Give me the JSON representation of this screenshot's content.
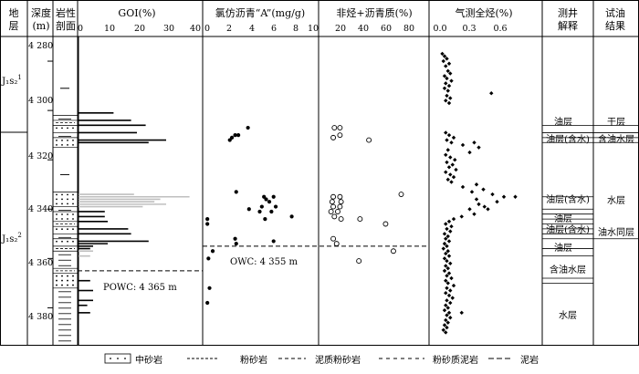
{
  "headers": {
    "stratum": [
      "地",
      "层"
    ],
    "depth": [
      "深度",
      "(m)"
    ],
    "lithology": [
      "岩性",
      "剖面"
    ],
    "goi": "GOI(%)",
    "chloroform": "氯仿沥青“A”(mg/g)",
    "nonhydro": "非烃+沥青质(%)",
    "gas": "气测全烃(%)",
    "logging": [
      "测井",
      "解释"
    ],
    "test": [
      "试油",
      "结果"
    ]
  },
  "strata": {
    "upper": {
      "base": "J₁s₂",
      "sup": "1"
    },
    "lower": {
      "base": "J₁s₂",
      "sup": "2"
    }
  },
  "depth_axis": {
    "ticks": [
      "4 280",
      "4 300",
      "4 320",
      "4 340",
      "4 360",
      "4 380"
    ]
  },
  "axes": {
    "goi_ticks": [
      "0",
      "10",
      "20",
      "30",
      "40"
    ],
    "chloroform_ticks": [
      "0",
      "2",
      "4",
      "6",
      "8",
      "10"
    ],
    "nonhydro_ticks": [
      "20",
      "40",
      "60",
      "80"
    ],
    "gas_ticks": [
      "0.0",
      "0.3",
      "0.6"
    ]
  },
  "contacts": {
    "owc": "OWC: 4 355 m",
    "powc": "POWC: 4 365 m"
  },
  "logging_interp": [
    {
      "label": "油层"
    },
    {
      "label": "油层(含水)"
    },
    {
      "label": "油层(含水)"
    },
    {
      "label": "油层"
    },
    {
      "label": "油层(含水)"
    },
    {
      "label": "油层"
    },
    {
      "label": "含油水层"
    },
    {
      "label": "水层"
    }
  ],
  "test_results": [
    {
      "label": "干层"
    },
    {
      "label": "含油水层"
    },
    {
      "label": "水层"
    },
    {
      "label": "油水同层"
    }
  ],
  "legend": [
    {
      "label": "中砂岩"
    },
    {
      "label": "粉砂岩"
    },
    {
      "label": "泥质粉砂岩"
    },
    {
      "label": "粉砂质泥岩"
    },
    {
      "label": "泥岩"
    }
  ],
  "colors": {
    "primary_bar": "#000000",
    "secondary_bar": "#bfbfbf"
  },
  "chart_data": [
    {
      "type": "bar",
      "title": "GOI(%)",
      "xlim": [
        0,
        40
      ],
      "ylabel": "深度(m)",
      "ylim": [
        4270,
        4395
      ],
      "series": [
        {
          "values": [
            {
              "depth": 4301,
              "value": 12
            },
            {
              "depth": 4304,
              "value": 18
            },
            {
              "depth": 4306,
              "value": 23
            },
            {
              "depth": 4309,
              "value": 20
            },
            {
              "depth": 4312,
              "value": 30
            },
            {
              "depth": 4313,
              "value": 24
            },
            {
              "depth": 4341,
              "value": 9
            },
            {
              "depth": 4343,
              "value": 9
            },
            {
              "depth": 4345,
              "value": 10
            },
            {
              "depth": 4348,
              "value": 17
            },
            {
              "depth": 4350,
              "value": 18
            },
            {
              "depth": 4353,
              "value": 24
            },
            {
              "depth": 4354,
              "value": 10
            },
            {
              "depth": 4355,
              "value": 5
            },
            {
              "depth": 4356,
              "value": 4
            },
            {
              "depth": 4369,
              "value": 4
            },
            {
              "depth": 4373,
              "value": 5
            },
            {
              "depth": 4377,
              "value": 5
            },
            {
              "depth": 4379,
              "value": 3
            },
            {
              "depth": 4382,
              "value": 4
            }
          ]
        },
        {
          "values": [
            {
              "depth": 4334,
              "value": 19
            },
            {
              "depth": 4335,
              "value": 38
            },
            {
              "depth": 4336,
              "value": 28
            },
            {
              "depth": 4337,
              "value": 26
            },
            {
              "depth": 4338,
              "value": 30
            },
            {
              "depth": 4339,
              "value": 22
            },
            {
              "depth": 4357,
              "value": 5
            },
            {
              "depth": 4359,
              "value": 4
            }
          ]
        }
      ]
    },
    {
      "type": "scatter",
      "title": "氯仿沥青“A”(mg/g)",
      "xlim": [
        0,
        10
      ],
      "ylim": [
        4270,
        4395
      ],
      "points": [
        {
          "x": 3.9,
          "y": 4307
        },
        {
          "x": 3.0,
          "y": 4310
        },
        {
          "x": 2.7,
          "y": 4310
        },
        {
          "x": 2.4,
          "y": 4311
        },
        {
          "x": 2.2,
          "y": 4312
        },
        {
          "x": 2.8,
          "y": 4333
        },
        {
          "x": 5.4,
          "y": 4335
        },
        {
          "x": 6.3,
          "y": 4335
        },
        {
          "x": 5.6,
          "y": 4336
        },
        {
          "x": 5.9,
          "y": 4337
        },
        {
          "x": 5.2,
          "y": 4339
        },
        {
          "x": 6.5,
          "y": 4339
        },
        {
          "x": 4.0,
          "y": 4340
        },
        {
          "x": 5.0,
          "y": 4341
        },
        {
          "x": 6.1,
          "y": 4341
        },
        {
          "x": 8.0,
          "y": 4343
        },
        {
          "x": 5.5,
          "y": 4344
        },
        {
          "x": 0.1,
          "y": 4344
        },
        {
          "x": 0.1,
          "y": 4346
        },
        {
          "x": 2.7,
          "y": 4352
        },
        {
          "x": 6.3,
          "y": 4353
        },
        {
          "x": 2.8,
          "y": 4354
        },
        {
          "x": 0.6,
          "y": 4357
        },
        {
          "x": 0.2,
          "y": 4360
        },
        {
          "x": 0.3,
          "y": 4372
        },
        {
          "x": 0.1,
          "y": 4378
        }
      ]
    },
    {
      "type": "scatter",
      "title": "非烃+沥青质(%)",
      "xlim": [
        0,
        100
      ],
      "ylim": [
        4270,
        4395
      ],
      "points": [
        {
          "x": 15,
          "y": 4307
        },
        {
          "x": 20,
          "y": 4307
        },
        {
          "x": 14,
          "y": 4311
        },
        {
          "x": 20,
          "y": 4310
        },
        {
          "x": 46,
          "y": 4312
        },
        {
          "x": 75,
          "y": 4334
        },
        {
          "x": 14,
          "y": 4335
        },
        {
          "x": 20,
          "y": 4335
        },
        {
          "x": 13,
          "y": 4337
        },
        {
          "x": 21,
          "y": 4337
        },
        {
          "x": 14,
          "y": 4339
        },
        {
          "x": 20,
          "y": 4339
        },
        {
          "x": 12,
          "y": 4341
        },
        {
          "x": 18,
          "y": 4341
        },
        {
          "x": 15,
          "y": 4343
        },
        {
          "x": 21,
          "y": 4344
        },
        {
          "x": 38,
          "y": 4344
        },
        {
          "x": 61,
          "y": 4346
        },
        {
          "x": 14,
          "y": 4352
        },
        {
          "x": 17,
          "y": 4354
        },
        {
          "x": 68,
          "y": 4357
        },
        {
          "x": 37,
          "y": 4361
        }
      ]
    },
    {
      "type": "scatter",
      "title": "气测全烃(%)",
      "xlim": [
        0,
        0.8
      ],
      "ylim": [
        4270,
        4395
      ],
      "points": [
        {
          "x": 0.02,
          "y": 4277
        },
        {
          "x": 0.04,
          "y": 4278
        },
        {
          "x": 0.06,
          "y": 4279
        },
        {
          "x": 0.03,
          "y": 4280
        },
        {
          "x": 0.08,
          "y": 4281
        },
        {
          "x": 0.05,
          "y": 4282
        },
        {
          "x": 0.07,
          "y": 4284
        },
        {
          "x": 0.09,
          "y": 4285
        },
        {
          "x": 0.04,
          "y": 4286
        },
        {
          "x": 0.06,
          "y": 4287
        },
        {
          "x": 0.1,
          "y": 4288
        },
        {
          "x": 0.05,
          "y": 4289
        },
        {
          "x": 0.08,
          "y": 4290
        },
        {
          "x": 0.04,
          "y": 4291
        },
        {
          "x": 0.07,
          "y": 4292
        },
        {
          "x": 0.45,
          "y": 4293
        },
        {
          "x": 0.06,
          "y": 4294
        },
        {
          "x": 0.09,
          "y": 4295
        },
        {
          "x": 0.05,
          "y": 4296
        },
        {
          "x": 0.08,
          "y": 4297
        },
        {
          "x": 0.05,
          "y": 4309
        },
        {
          "x": 0.08,
          "y": 4310
        },
        {
          "x": 0.12,
          "y": 4311
        },
        {
          "x": 0.06,
          "y": 4312
        },
        {
          "x": 0.1,
          "y": 4313
        },
        {
          "x": 0.3,
          "y": 4313
        },
        {
          "x": 0.2,
          "y": 4314
        },
        {
          "x": 0.34,
          "y": 4315
        },
        {
          "x": 0.07,
          "y": 4316
        },
        {
          "x": 0.26,
          "y": 4317
        },
        {
          "x": 0.05,
          "y": 4318
        },
        {
          "x": 0.09,
          "y": 4319
        },
        {
          "x": 0.13,
          "y": 4320
        },
        {
          "x": 0.06,
          "y": 4321
        },
        {
          "x": 0.11,
          "y": 4322
        },
        {
          "x": 0.08,
          "y": 4323
        },
        {
          "x": 0.14,
          "y": 4324
        },
        {
          "x": 0.05,
          "y": 4325
        },
        {
          "x": 0.09,
          "y": 4326
        },
        {
          "x": 0.12,
          "y": 4327
        },
        {
          "x": 0.07,
          "y": 4328
        },
        {
          "x": 0.1,
          "y": 4329
        },
        {
          "x": 0.32,
          "y": 4330
        },
        {
          "x": 0.2,
          "y": 4331
        },
        {
          "x": 0.38,
          "y": 4332
        },
        {
          "x": 0.28,
          "y": 4333
        },
        {
          "x": 0.46,
          "y": 4334
        },
        {
          "x": 0.56,
          "y": 4335
        },
        {
          "x": 0.66,
          "y": 4335
        },
        {
          "x": 0.32,
          "y": 4336
        },
        {
          "x": 0.5,
          "y": 4337
        },
        {
          "x": 0.34,
          "y": 4338
        },
        {
          "x": 0.39,
          "y": 4339
        },
        {
          "x": 0.26,
          "y": 4340
        },
        {
          "x": 0.42,
          "y": 4340
        },
        {
          "x": 0.3,
          "y": 4342
        },
        {
          "x": 0.19,
          "y": 4343
        },
        {
          "x": 0.12,
          "y": 4344
        },
        {
          "x": 0.08,
          "y": 4345
        },
        {
          "x": 0.05,
          "y": 4346
        },
        {
          "x": 0.1,
          "y": 4347
        },
        {
          "x": 0.06,
          "y": 4348
        },
        {
          "x": 0.09,
          "y": 4349
        },
        {
          "x": 0.04,
          "y": 4350
        },
        {
          "x": 0.07,
          "y": 4351
        },
        {
          "x": 0.05,
          "y": 4352
        },
        {
          "x": 0.08,
          "y": 4353
        },
        {
          "x": 0.04,
          "y": 4354
        },
        {
          "x": 0.06,
          "y": 4355
        },
        {
          "x": 0.03,
          "y": 4356
        },
        {
          "x": 0.07,
          "y": 4357
        },
        {
          "x": 0.05,
          "y": 4358
        },
        {
          "x": 0.08,
          "y": 4359
        },
        {
          "x": 0.04,
          "y": 4360
        },
        {
          "x": 0.06,
          "y": 4361
        },
        {
          "x": 0.09,
          "y": 4362
        },
        {
          "x": 0.05,
          "y": 4363
        },
        {
          "x": 0.07,
          "y": 4364
        },
        {
          "x": 0.04,
          "y": 4365
        },
        {
          "x": 0.08,
          "y": 4366
        },
        {
          "x": 0.06,
          "y": 4367
        },
        {
          "x": 0.1,
          "y": 4368
        },
        {
          "x": 0.05,
          "y": 4369
        },
        {
          "x": 0.07,
          "y": 4370
        },
        {
          "x": 0.12,
          "y": 4371
        },
        {
          "x": 0.06,
          "y": 4372
        },
        {
          "x": 0.09,
          "y": 4373
        },
        {
          "x": 0.05,
          "y": 4374
        },
        {
          "x": 0.08,
          "y": 4375
        },
        {
          "x": 0.11,
          "y": 4376
        },
        {
          "x": 0.06,
          "y": 4377
        },
        {
          "x": 0.09,
          "y": 4378
        },
        {
          "x": 0.05,
          "y": 4379
        },
        {
          "x": 0.07,
          "y": 4380
        },
        {
          "x": 0.04,
          "y": 4381
        },
        {
          "x": 0.08,
          "y": 4382
        },
        {
          "x": 0.19,
          "y": 4382
        },
        {
          "x": 0.06,
          "y": 4383
        },
        {
          "x": 0.09,
          "y": 4384
        },
        {
          "x": 0.05,
          "y": 4385
        },
        {
          "x": 0.07,
          "y": 4386
        },
        {
          "x": 0.04,
          "y": 4387
        },
        {
          "x": 0.06,
          "y": 4388
        },
        {
          "x": 0.03,
          "y": 4389
        },
        {
          "x": 0.05,
          "y": 4390
        }
      ]
    }
  ]
}
